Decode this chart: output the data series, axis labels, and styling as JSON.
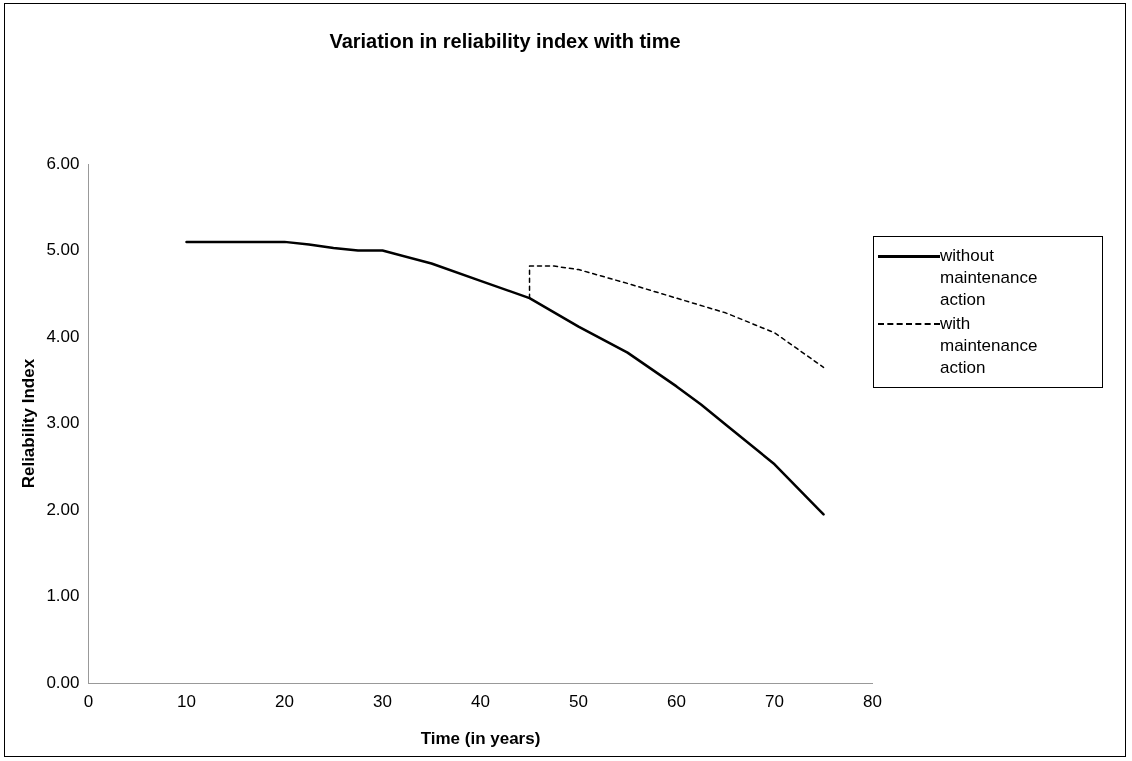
{
  "chart_data": {
    "type": "line",
    "title": "Variation in reliability index with time",
    "xlabel": "Time (in years)",
    "ylabel": "Reliability Index",
    "xlim": [
      0,
      80
    ],
    "xticks": [
      0,
      10,
      20,
      30,
      40,
      50,
      60,
      70,
      80
    ],
    "ylim": [
      0,
      6
    ],
    "yticks": [
      {
        "value": 0,
        "label": "0.00"
      },
      {
        "value": 1,
        "label": "1.00"
      },
      {
        "value": 2,
        "label": "2.00"
      },
      {
        "value": 3,
        "label": "3.00"
      },
      {
        "value": 4,
        "label": "4.00"
      },
      {
        "value": 5,
        "label": "5.00"
      },
      {
        "value": 6,
        "label": "6.00"
      }
    ],
    "grid": false,
    "legend": "right",
    "marker": "none",
    "series": [
      {
        "name": "without maintenance action",
        "color": "#000000",
        "line_style": "solid",
        "x": [
          10,
          15,
          20,
          22.5,
          25,
          27.5,
          30,
          35,
          40,
          45,
          50,
          55,
          60,
          62.5,
          65,
          70,
          75
        ],
        "values": [
          5.1,
          5.1,
          5.1,
          5.07,
          5.03,
          5.0,
          5.0,
          4.85,
          4.65,
          4.45,
          4.12,
          3.82,
          3.43,
          3.22,
          2.99,
          2.53,
          1.95
        ]
      },
      {
        "name": "with maintenance action",
        "color": "#000000",
        "line_style": "dashed",
        "x": [
          45,
          45,
          47.5,
          50,
          55,
          60,
          65,
          70,
          75
        ],
        "values": [
          4.45,
          4.82,
          4.82,
          4.78,
          4.62,
          4.45,
          4.28,
          4.05,
          3.65
        ]
      }
    ]
  }
}
